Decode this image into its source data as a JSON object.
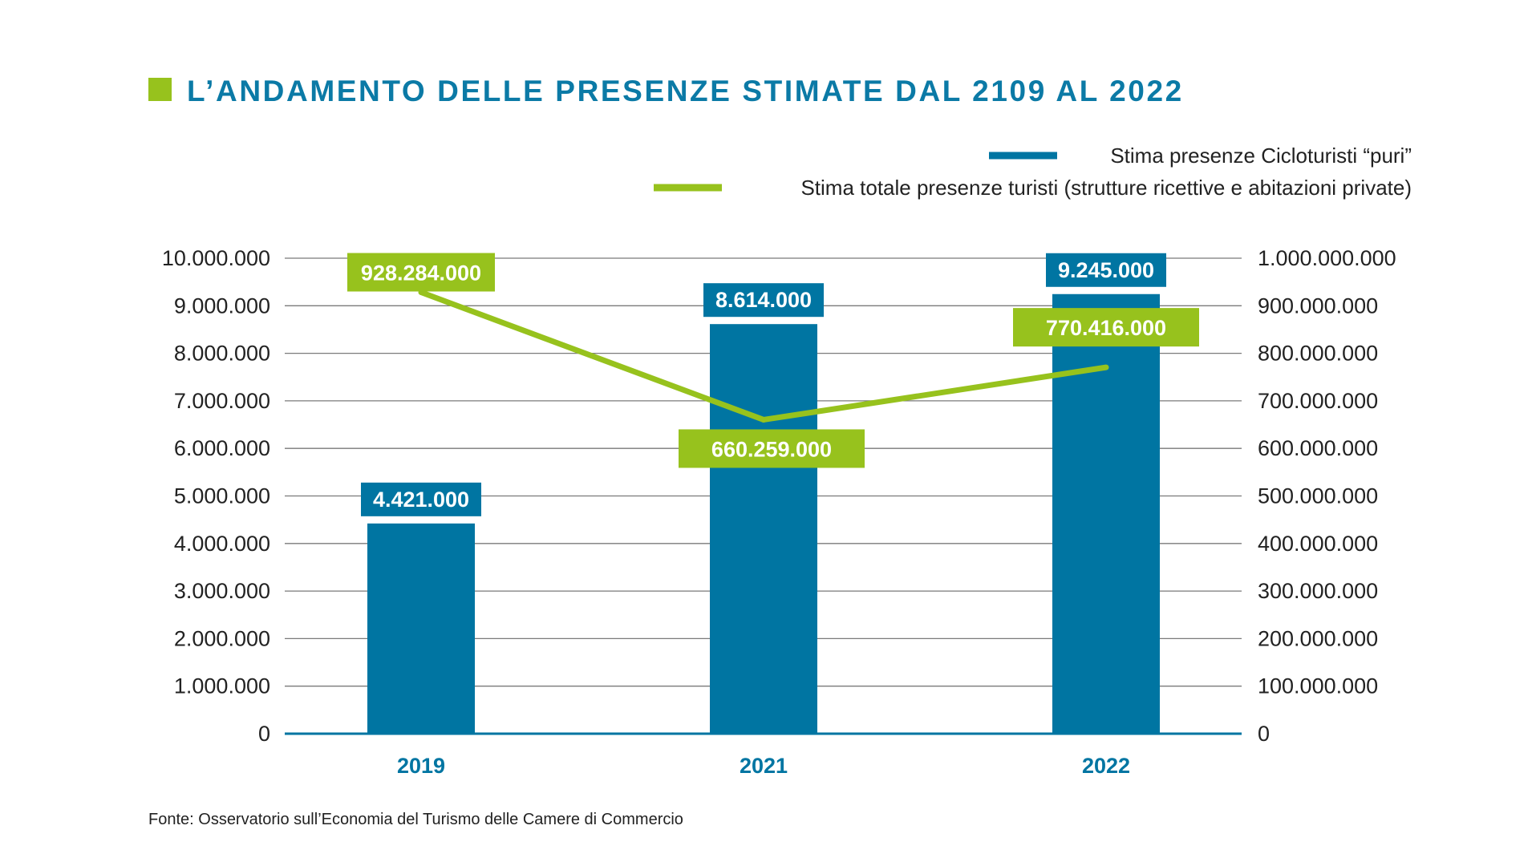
{
  "colors": {
    "title": "#0b7aa6",
    "title_marker": "#97c21d",
    "bar": "#0075a2",
    "line": "#97c21d",
    "grid": "#7a7a7a",
    "axis": "#0075a2",
    "category_label": "#0075a2",
    "text": "#222222"
  },
  "chart_data": {
    "type": "bar",
    "title": "L’ANDAMENTO DELLE PRESENZE STIMATE DAL 2109 AL 2022",
    "categories": [
      "2019",
      "2021",
      "2022"
    ],
    "series": [
      {
        "name": "Stima presenze Cicloturisti “puri”",
        "type": "bar",
        "axis": "left",
        "values": [
          4421000,
          8614000,
          9245000
        ],
        "labels": [
          "4.421.000",
          "8.614.000",
          "9.245.000"
        ]
      },
      {
        "name": "Stima totale presenze turisti (strutture ricettive e abitazioni private)",
        "type": "line",
        "axis": "right",
        "values": [
          928284000,
          660259000,
          770416000
        ],
        "labels": [
          "928.284.000",
          "660.259.000",
          "770.416.000"
        ]
      }
    ],
    "y_left": {
      "min": 0,
      "max": 10000000,
      "ticks": [
        "0",
        "1.000.000",
        "2.000.000",
        "3.000.000",
        "4.000.000",
        "5.000.000",
        "6.000.000",
        "7.000.000",
        "8.000.000",
        "9.000.000",
        "10.000.000"
      ]
    },
    "y_right": {
      "min": 0,
      "max": 1000000000,
      "ticks": [
        "0",
        "100.000.000",
        "200.000.000",
        "300.000.000",
        "400.000.000",
        "500.000.000",
        "600.000.000",
        "700.000.000",
        "800.000.000",
        "900.000.000",
        "1.000.000.000"
      ]
    },
    "grid": true,
    "legend_position": "top-right",
    "source": "Fonte: Osservatorio sull’Economia del Turismo delle Camere di Commercio"
  }
}
